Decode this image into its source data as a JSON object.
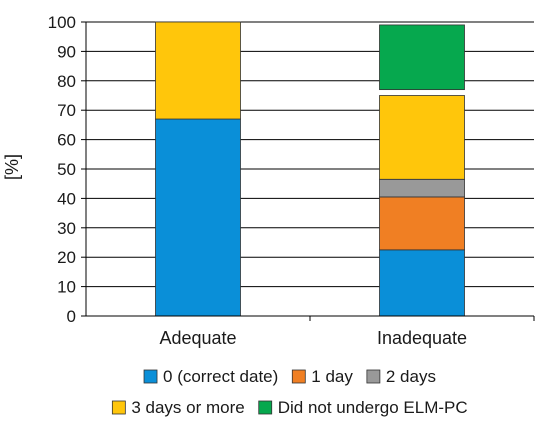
{
  "chart_data": {
    "type": "bar",
    "stacked": true,
    "title": "",
    "xlabel": "",
    "ylabel": "[%]",
    "ylim": [
      0,
      100
    ],
    "yticks": [
      0,
      10,
      20,
      30,
      40,
      50,
      60,
      70,
      80,
      90,
      100
    ],
    "grid": true,
    "legend_position": "bottom",
    "categories": [
      "Adequate",
      "Inadequate"
    ],
    "series": [
      {
        "name": "0 (correct date)",
        "color": "#0a8fd8",
        "values": [
          67,
          22.5
        ]
      },
      {
        "name": "1 day",
        "color": "#f07f23",
        "values": [
          0,
          18
        ]
      },
      {
        "name": "2 days",
        "color": "#999999",
        "values": [
          0,
          6
        ]
      },
      {
        "name": "3 days or more",
        "color": "#ffc60b",
        "values": [
          33,
          28.5
        ]
      },
      {
        "name": "Did not undergo ELM-PC",
        "color": "#06a84e",
        "values": [
          0,
          22
        ]
      }
    ],
    "gaps": [
      0,
      2
    ]
  }
}
